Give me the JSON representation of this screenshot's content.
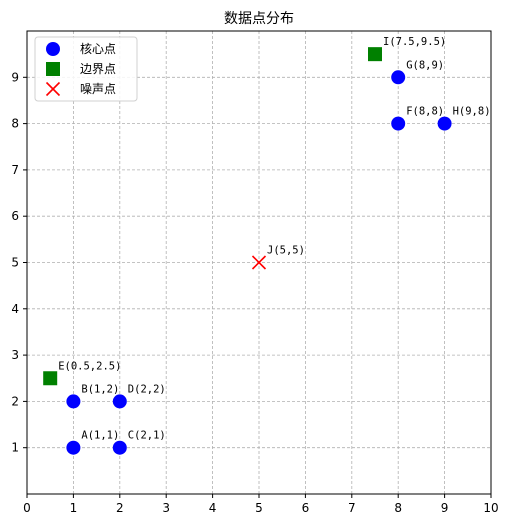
{
  "chart_data": {
    "type": "scatter",
    "title": "数据点分布",
    "xlabel": "",
    "ylabel": "",
    "xlim": [
      0,
      10
    ],
    "ylim": [
      0,
      10
    ],
    "xticks": [
      "0",
      "1",
      "2",
      "3",
      "4",
      "5",
      "6",
      "7",
      "8",
      "9",
      "10"
    ],
    "yticks": [
      "1",
      "2",
      "3",
      "4",
      "5",
      "6",
      "7",
      "8",
      "9"
    ],
    "grid": true,
    "legend_position": "top-left",
    "series": [
      {
        "name": "核心点",
        "marker": "circle",
        "color": "#0000ff",
        "points": [
          {
            "x": 1,
            "y": 1,
            "label": "A(1,1)"
          },
          {
            "x": 1,
            "y": 2,
            "label": "B(1,2)"
          },
          {
            "x": 2,
            "y": 1,
            "label": "C(2,1)"
          },
          {
            "x": 2,
            "y": 2,
            "label": "D(2,2)"
          },
          {
            "x": 8,
            "y": 8,
            "label": "F(8,8)"
          },
          {
            "x": 8,
            "y": 9,
            "label": "G(8,9)"
          },
          {
            "x": 9,
            "y": 8,
            "label": "H(9,8)"
          }
        ]
      },
      {
        "name": "边界点",
        "marker": "square",
        "color": "#008000",
        "points": [
          {
            "x": 0.5,
            "y": 2.5,
            "label": "E(0.5,2.5)"
          },
          {
            "x": 7.5,
            "y": 9.5,
            "label": "I(7.5,9.5)"
          }
        ]
      },
      {
        "name": "噪声点",
        "marker": "x",
        "color": "#ff0000",
        "points": [
          {
            "x": 5,
            "y": 5,
            "label": "J(5,5)"
          }
        ]
      }
    ]
  }
}
